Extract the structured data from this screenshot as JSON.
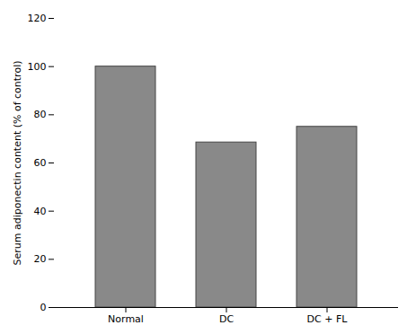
{
  "chart_data": {
    "type": "bar",
    "categories": [
      "Normal",
      "DC",
      "DC + FL"
    ],
    "values": [
      100,
      68.5,
      75.0
    ],
    "color": "#898989",
    "ylabel": "Serum adiponectin content (% of control)",
    "ylim": [
      0,
      120
    ],
    "yticks": [
      0,
      20,
      40,
      60,
      80,
      100,
      120
    ],
    "grid": false
  }
}
